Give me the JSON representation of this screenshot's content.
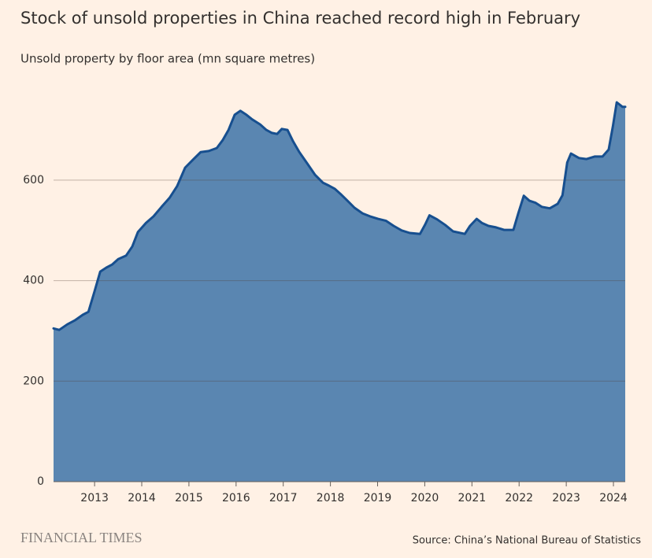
{
  "chart_data": {
    "type": "area",
    "title": "Stock of unsold properties in China reached record high in February",
    "subtitle": "Unsold property by floor area (mn square metres)",
    "source": "Source: China’s National Bureau of Statistics",
    "brand": "FINANCIAL TIMES",
    "x": [
      2012.13,
      2012.25,
      2012.42,
      2012.58,
      2012.75,
      2012.87,
      2013.0,
      2013.12,
      2013.25,
      2013.37,
      2013.5,
      2013.67,
      2013.8,
      2013.92,
      2014.09,
      2014.25,
      2014.42,
      2014.59,
      2014.75,
      2014.92,
      2015.09,
      2015.25,
      2015.42,
      2015.59,
      2015.72,
      2015.84,
      2015.97,
      2016.09,
      2016.22,
      2016.34,
      2016.51,
      2016.64,
      2016.76,
      2016.87,
      2016.97,
      2017.09,
      2017.21,
      2017.34,
      2017.51,
      2017.67,
      2017.84,
      2017.97,
      2018.09,
      2018.21,
      2018.34,
      2018.51,
      2018.68,
      2018.84,
      2019.01,
      2019.18,
      2019.34,
      2019.51,
      2019.68,
      2019.9,
      2020.01,
      2020.1,
      2020.26,
      2020.43,
      2020.6,
      2020.85,
      2020.96,
      2021.1,
      2021.21,
      2021.35,
      2021.51,
      2021.68,
      2021.88,
      2021.98,
      2022.1,
      2022.22,
      2022.35,
      2022.48,
      2022.65,
      2022.82,
      2022.92,
      2023.02,
      2023.1,
      2023.27,
      2023.43,
      2023.6,
      2023.77,
      2023.9,
      2023.99,
      2024.07,
      2024.19,
      2024.25
    ],
    "values": [
      305,
      302,
      313,
      321,
      332,
      338,
      379,
      418,
      426,
      432,
      443,
      450,
      468,
      497,
      515,
      528,
      547,
      565,
      588,
      625,
      641,
      656,
      658,
      664,
      680,
      700,
      730,
      738,
      730,
      721,
      711,
      700,
      694,
      692,
      702,
      700,
      677,
      656,
      633,
      611,
      595,
      589,
      583,
      573,
      561,
      545,
      534,
      528,
      523,
      519,
      509,
      500,
      495,
      493,
      512,
      530,
      522,
      511,
      498,
      493,
      509,
      523,
      515,
      509,
      506,
      501,
      501,
      533,
      569,
      559,
      555,
      547,
      544,
      553,
      570,
      635,
      653,
      644,
      642,
      647,
      647,
      661,
      708,
      755,
      746,
      746
    ],
    "fill": "#5a86b1",
    "color": "#174f8f",
    "xlim": [
      2012.13,
      2024.25
    ],
    "xticks": [
      2013,
      2014,
      2015,
      2016,
      2017,
      2018,
      2019,
      2020,
      2021,
      2022,
      2023,
      2024
    ],
    "ylim": [
      0,
      780
    ],
    "yticks": [
      0,
      200,
      400,
      600
    ],
    "grid": true
  }
}
